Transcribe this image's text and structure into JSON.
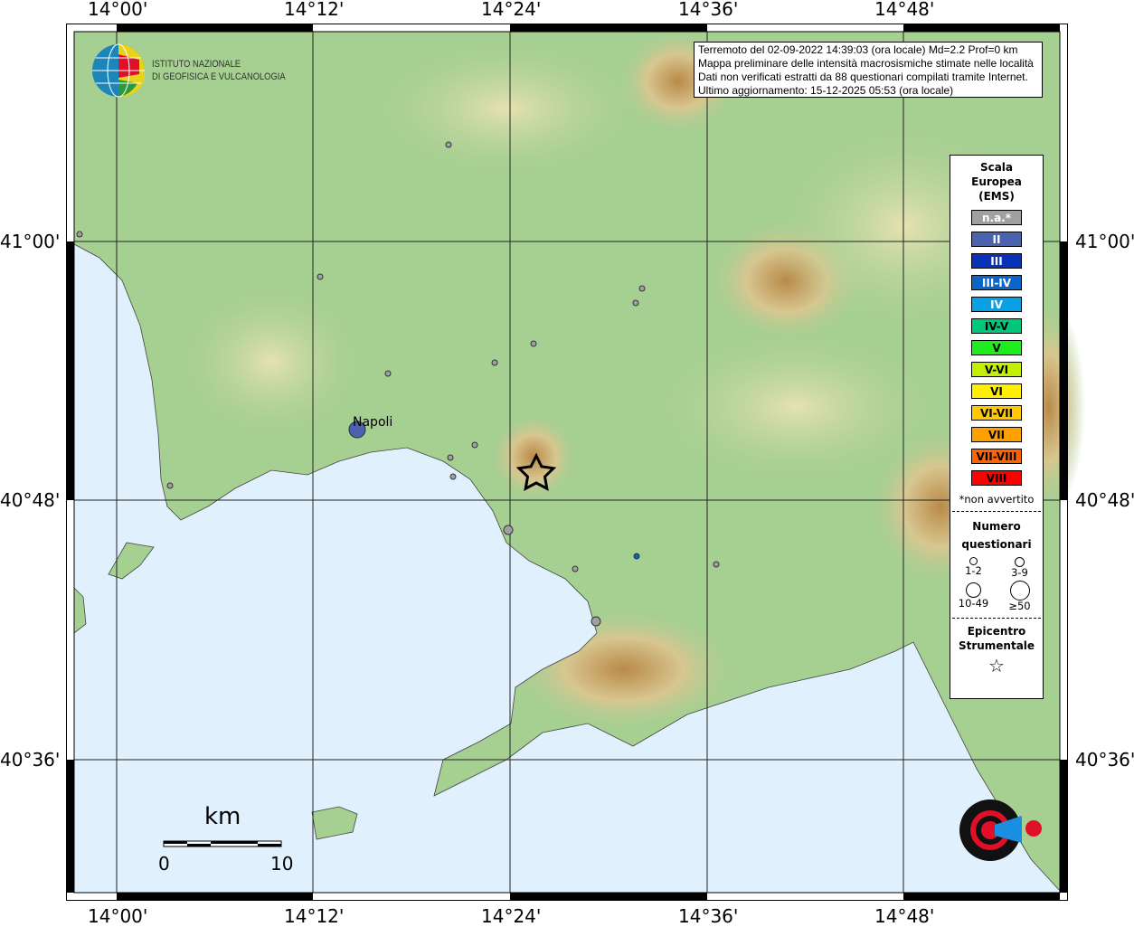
{
  "axes": {
    "lon_labels": [
      "14°00'",
      "14°12'",
      "14°24'",
      "14°36'",
      "14°48'"
    ],
    "lat_labels": [
      "41°00'",
      "40°48'",
      "40°36'"
    ]
  },
  "info": {
    "lines": [
      "Terremoto del 02-09-2022 14:39:03 (ora locale) Md=2.2 Prof=0 km",
      "Mappa preliminare delle intensità macrosismiche stimate nelle località",
      "Dati non verificati estratti da 88 questionari compilati tramite Internet.",
      "Ultimo aggiornamento: 15-12-2025 05:53 (ora locale)"
    ]
  },
  "logo": {
    "ingv_line1": "ISTITUTO NAZIONALE",
    "ingv_line2": "DI GEOFISICA E VULCANOLOGIA",
    "hst": "www.haisentitoilterremoto.it"
  },
  "legend": {
    "title": [
      "Scala",
      "Europea",
      "(EMS)"
    ],
    "scale": [
      {
        "label": "n.a.*",
        "color": "#a0a0a0",
        "text": "#fff"
      },
      {
        "label": "II",
        "color": "#4a62b0",
        "text": "#fff"
      },
      {
        "label": "III",
        "color": "#0a32b8",
        "text": "#fff"
      },
      {
        "label": "III-IV",
        "color": "#0b64c8",
        "text": "#fff"
      },
      {
        "label": "IV",
        "color": "#0aa0e6",
        "text": "#fff"
      },
      {
        "label": "IV-V",
        "color": "#00c878",
        "text": "#000"
      },
      {
        "label": "V",
        "color": "#1eec1e",
        "text": "#000"
      },
      {
        "label": "V-VI",
        "color": "#c3f000",
        "text": "#000"
      },
      {
        "label": "VI",
        "color": "#fff000",
        "text": "#000"
      },
      {
        "label": "VI-VII",
        "color": "#ffc800",
        "text": "#000"
      },
      {
        "label": "VII",
        "color": "#ffa000",
        "text": "#000"
      },
      {
        "label": "VII-VIII",
        "color": "#ff6400",
        "text": "#000"
      },
      {
        "label": "VIII",
        "color": "#ff0000",
        "text": "#000"
      }
    ],
    "note": "*non avvertito",
    "count_title": [
      "Numero",
      "questionari"
    ],
    "counts": [
      "1-2",
      "3-9",
      "10-49",
      "≥50"
    ],
    "epi_title": [
      "Epicentro",
      "Strumentale"
    ]
  },
  "places": [
    {
      "name": "Napoli"
    }
  ],
  "scalebar": {
    "unit": "km",
    "min": "0",
    "max": "10"
  }
}
